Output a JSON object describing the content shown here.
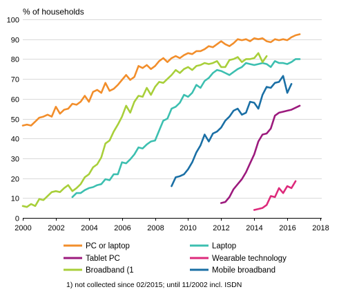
{
  "chart_data": {
    "type": "line",
    "ylabel": "% of households",
    "xlim": [
      2000,
      2018
    ],
    "ylim": [
      0,
      100
    ],
    "x_ticks": [
      "2000",
      "2002",
      "2004",
      "2006",
      "2008",
      "2010",
      "2012",
      "2014",
      "2016",
      "2018"
    ],
    "y_ticks": [
      "0",
      "10",
      "20",
      "30",
      "40",
      "50",
      "60",
      "70",
      "80",
      "90",
      "100"
    ],
    "grid": "horizontal",
    "legend_placement": "bottom",
    "footnote": "1) not collected since 02/2015; until 11/2002 incl. ISDN",
    "series": [
      {
        "name": "PC or laptop",
        "color": "#f28e2b",
        "points": [
          [
            2000.0,
            46.5
          ],
          [
            2000.25,
            47
          ],
          [
            2000.5,
            46.5
          ],
          [
            2000.75,
            48.5
          ],
          [
            2001.0,
            50.5
          ],
          [
            2001.25,
            51
          ],
          [
            2001.5,
            52
          ],
          [
            2001.75,
            51
          ],
          [
            2002.0,
            56
          ],
          [
            2002.25,
            52.5
          ],
          [
            2002.5,
            54.5
          ],
          [
            2002.75,
            55
          ],
          [
            2003.0,
            57.5
          ],
          [
            2003.25,
            57
          ],
          [
            2003.5,
            58.5
          ],
          [
            2003.75,
            61.5
          ],
          [
            2004.0,
            58.5
          ],
          [
            2004.25,
            63.5
          ],
          [
            2004.5,
            64.5
          ],
          [
            2004.75,
            63
          ],
          [
            2005.0,
            68
          ],
          [
            2005.25,
            64
          ],
          [
            2005.5,
            65
          ],
          [
            2005.75,
            67
          ],
          [
            2006.0,
            69.5
          ],
          [
            2006.25,
            72
          ],
          [
            2006.5,
            69.5
          ],
          [
            2006.75,
            71
          ],
          [
            2007.0,
            76.5
          ],
          [
            2007.25,
            75.5
          ],
          [
            2007.5,
            77
          ],
          [
            2007.75,
            75
          ],
          [
            2008.0,
            76.5
          ],
          [
            2008.25,
            79
          ],
          [
            2008.5,
            80.5
          ],
          [
            2008.75,
            78.5
          ],
          [
            2009.0,
            80.5
          ],
          [
            2009.25,
            81.5
          ],
          [
            2009.5,
            80.5
          ],
          [
            2009.75,
            82
          ],
          [
            2010.0,
            83
          ],
          [
            2010.25,
            82.5
          ],
          [
            2010.5,
            84
          ],
          [
            2010.75,
            84
          ],
          [
            2011.0,
            85
          ],
          [
            2011.25,
            86.5
          ],
          [
            2011.5,
            86
          ],
          [
            2011.75,
            87.5
          ],
          [
            2012.0,
            89
          ],
          [
            2012.25,
            87.5
          ],
          [
            2012.5,
            86.5
          ],
          [
            2012.75,
            88
          ],
          [
            2013.0,
            90
          ],
          [
            2013.25,
            89.5
          ],
          [
            2013.5,
            90
          ],
          [
            2013.75,
            89
          ],
          [
            2014.0,
            90.5
          ],
          [
            2014.25,
            90
          ],
          [
            2014.5,
            90.5
          ],
          [
            2014.75,
            89
          ],
          [
            2015.0,
            88.5
          ],
          [
            2015.25,
            90
          ],
          [
            2015.5,
            89.5
          ],
          [
            2015.75,
            90
          ],
          [
            2016.0,
            89.5
          ],
          [
            2016.25,
            91
          ],
          [
            2016.5,
            92
          ],
          [
            2016.75,
            92.5
          ]
        ]
      },
      {
        "name": "Laptop",
        "color": "#3cbfb0",
        "points": [
          [
            2003.0,
            10.5
          ],
          [
            2003.25,
            12.5
          ],
          [
            2003.5,
            12.5
          ],
          [
            2003.75,
            14
          ],
          [
            2004.0,
            15
          ],
          [
            2004.25,
            15.5
          ],
          [
            2004.5,
            16.5
          ],
          [
            2004.75,
            17
          ],
          [
            2005.0,
            19.5
          ],
          [
            2005.25,
            19
          ],
          [
            2005.5,
            22
          ],
          [
            2005.75,
            22
          ],
          [
            2006.0,
            28
          ],
          [
            2006.25,
            27.5
          ],
          [
            2006.5,
            29.5
          ],
          [
            2006.75,
            32
          ],
          [
            2007.0,
            35.5
          ],
          [
            2007.25,
            35
          ],
          [
            2007.5,
            37
          ],
          [
            2007.75,
            38.5
          ],
          [
            2008.0,
            39
          ],
          [
            2008.25,
            44
          ],
          [
            2008.5,
            49
          ],
          [
            2008.75,
            50
          ],
          [
            2009.0,
            55
          ],
          [
            2009.25,
            56
          ],
          [
            2009.5,
            58
          ],
          [
            2009.75,
            62
          ],
          [
            2010.0,
            61
          ],
          [
            2010.25,
            63
          ],
          [
            2010.5,
            67
          ],
          [
            2010.75,
            65.5
          ],
          [
            2011.0,
            69
          ],
          [
            2011.25,
            70.5
          ],
          [
            2011.5,
            73
          ],
          [
            2011.75,
            74.5
          ],
          [
            2012.0,
            74
          ],
          [
            2012.25,
            73
          ],
          [
            2012.5,
            72
          ],
          [
            2012.75,
            73.5
          ],
          [
            2013.0,
            75
          ],
          [
            2013.25,
            76
          ],
          [
            2013.5,
            78
          ],
          [
            2013.75,
            77.5
          ],
          [
            2014.0,
            77
          ],
          [
            2014.25,
            77.5
          ],
          [
            2014.5,
            78
          ],
          [
            2014.75,
            77.5
          ],
          [
            2015.0,
            76
          ],
          [
            2015.25,
            79
          ],
          [
            2015.5,
            78
          ],
          [
            2015.75,
            78
          ],
          [
            2016.0,
            77.5
          ],
          [
            2016.25,
            78.5
          ],
          [
            2016.5,
            80
          ],
          [
            2016.75,
            80
          ]
        ]
      },
      {
        "name": "Tablet PC",
        "color": "#9c1a7d",
        "points": [
          [
            2012.0,
            7.5
          ],
          [
            2012.25,
            8
          ],
          [
            2012.5,
            10.5
          ],
          [
            2012.75,
            14.5
          ],
          [
            2013.0,
            17
          ],
          [
            2013.25,
            19.5
          ],
          [
            2013.5,
            23
          ],
          [
            2013.75,
            27.5
          ],
          [
            2014.0,
            32
          ],
          [
            2014.25,
            38.5
          ],
          [
            2014.5,
            42
          ],
          [
            2014.75,
            42.5
          ],
          [
            2015.0,
            45
          ],
          [
            2015.25,
            51.5
          ],
          [
            2015.5,
            53
          ],
          [
            2015.75,
            53.5
          ],
          [
            2016.0,
            54
          ],
          [
            2016.25,
            54.5
          ],
          [
            2016.5,
            55.5
          ],
          [
            2016.75,
            56.5
          ]
        ]
      },
      {
        "name": "Wearable technology",
        "color": "#dd2a7b",
        "points": [
          [
            2014.0,
            4
          ],
          [
            2014.25,
            4.5
          ],
          [
            2014.5,
            5
          ],
          [
            2014.75,
            6.5
          ],
          [
            2015.0,
            11
          ],
          [
            2015.25,
            10.5
          ],
          [
            2015.5,
            15
          ],
          [
            2015.75,
            12.5
          ],
          [
            2016.0,
            16
          ],
          [
            2016.25,
            15
          ],
          [
            2016.5,
            18.5
          ]
        ]
      },
      {
        "name": "Broadband (1",
        "color": "#a8cf3a",
        "points": [
          [
            2000.0,
            6
          ],
          [
            2000.25,
            5.5
          ],
          [
            2000.5,
            7
          ],
          [
            2000.75,
            6
          ],
          [
            2001.0,
            9.5
          ],
          [
            2001.25,
            9
          ],
          [
            2001.5,
            11
          ],
          [
            2001.75,
            13
          ],
          [
            2002.0,
            13.5
          ],
          [
            2002.25,
            13
          ],
          [
            2002.5,
            15
          ],
          [
            2002.75,
            16.5
          ],
          [
            2003.0,
            13.5
          ],
          [
            2003.25,
            15
          ],
          [
            2003.5,
            17
          ],
          [
            2003.75,
            20.5
          ],
          [
            2004.0,
            22
          ],
          [
            2004.25,
            25.5
          ],
          [
            2004.5,
            27
          ],
          [
            2004.75,
            30.5
          ],
          [
            2005.0,
            37.5
          ],
          [
            2005.25,
            39
          ],
          [
            2005.5,
            43.5
          ],
          [
            2005.75,
            47
          ],
          [
            2006.0,
            51
          ],
          [
            2006.25,
            56.5
          ],
          [
            2006.5,
            53
          ],
          [
            2006.75,
            58.5
          ],
          [
            2007.0,
            61.5
          ],
          [
            2007.25,
            61
          ],
          [
            2007.5,
            65.5
          ],
          [
            2007.75,
            62
          ],
          [
            2008.0,
            66
          ],
          [
            2008.25,
            68.5
          ],
          [
            2008.5,
            68
          ],
          [
            2008.75,
            70
          ],
          [
            2009.0,
            72
          ],
          [
            2009.25,
            74.5
          ],
          [
            2009.5,
            73
          ],
          [
            2009.75,
            75
          ],
          [
            2010.0,
            76
          ],
          [
            2010.25,
            74.5
          ],
          [
            2010.5,
            76.5
          ],
          [
            2010.75,
            77
          ],
          [
            2011.0,
            78
          ],
          [
            2011.25,
            77.5
          ],
          [
            2011.5,
            78
          ],
          [
            2011.75,
            79
          ],
          [
            2012.0,
            76
          ],
          [
            2012.25,
            76
          ],
          [
            2012.5,
            79.5
          ],
          [
            2012.75,
            80
          ],
          [
            2013.0,
            81
          ],
          [
            2013.25,
            78.5
          ],
          [
            2013.5,
            80
          ],
          [
            2013.75,
            80
          ],
          [
            2014.0,
            80.5
          ],
          [
            2014.25,
            83
          ],
          [
            2014.5,
            78.5
          ],
          [
            2014.75,
            81.5
          ]
        ]
      },
      {
        "name": "Mobile broadband",
        "color": "#1a6fa5",
        "points": [
          [
            2009.0,
            16
          ],
          [
            2009.25,
            20.5
          ],
          [
            2009.5,
            21
          ],
          [
            2009.75,
            22
          ],
          [
            2010.0,
            24.5
          ],
          [
            2010.25,
            28
          ],
          [
            2010.5,
            33
          ],
          [
            2010.75,
            36.5
          ],
          [
            2011.0,
            42
          ],
          [
            2011.25,
            38.5
          ],
          [
            2011.5,
            42.5
          ],
          [
            2011.75,
            43.5
          ],
          [
            2012.0,
            45.5
          ],
          [
            2012.25,
            49
          ],
          [
            2012.5,
            51
          ],
          [
            2012.75,
            54
          ],
          [
            2013.0,
            55
          ],
          [
            2013.25,
            52
          ],
          [
            2013.5,
            53
          ],
          [
            2013.75,
            58.5
          ],
          [
            2014.0,
            58
          ],
          [
            2014.25,
            55
          ],
          [
            2014.5,
            62
          ],
          [
            2014.75,
            66
          ],
          [
            2015.0,
            65.5
          ],
          [
            2015.25,
            68
          ],
          [
            2015.5,
            68.5
          ],
          [
            2015.75,
            71.5
          ],
          [
            2016.0,
            63
          ],
          [
            2016.25,
            67.5
          ]
        ]
      }
    ]
  }
}
